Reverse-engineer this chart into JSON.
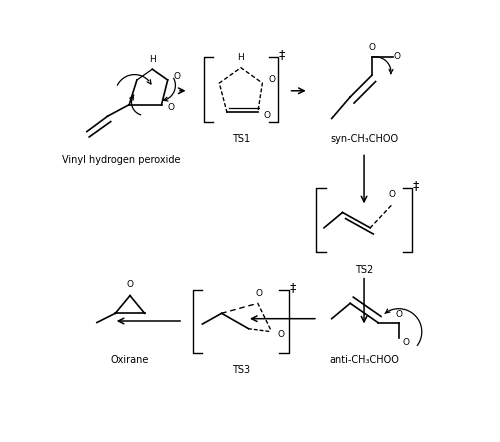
{
  "background_color": "#ffffff",
  "figsize": [
    5.0,
    4.42
  ],
  "dpi": 100,
  "labels": {
    "vinyl_h_peroxide": "Vinyl hydrogen peroxide",
    "ts1": "TS1",
    "syn_criegee": "syn-CH₃CHOO",
    "ts2": "TS2",
    "anti_criegee": "anti-CH₃CHOO",
    "ts3": "TS3",
    "oxirane": "Oxirane"
  },
  "xlim": [
    0,
    5.0
  ],
  "ylim": [
    0,
    4.42
  ]
}
